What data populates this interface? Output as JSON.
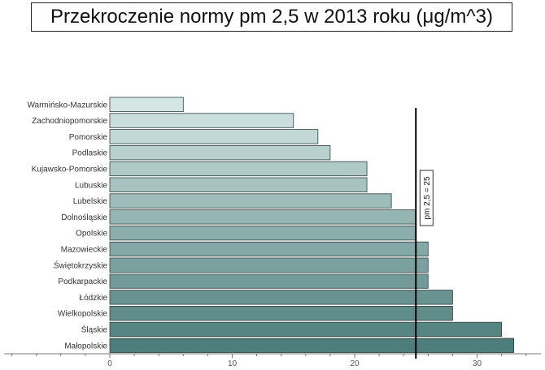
{
  "chart_data": {
    "type": "bar",
    "orientation": "horizontal",
    "title": "Przekroczenie normy pm 2,5 w 2013 roku (μg/m^3)",
    "categories": [
      "Warmińsko-Mazurskie",
      "Zachodniopomorskie",
      "Pomorskie",
      "Podlaskie",
      "Kujawsko-Pomorskie",
      "Lubuskie",
      "Lubelskie",
      "Dolnośląskie",
      "Opolskie",
      "Mazowieckie",
      "Świętokrzyskie",
      "Podkarpackie",
      "Łódzkie",
      "Wielkopolskie",
      "Śląskie",
      "Małopolskie"
    ],
    "values": [
      6,
      15,
      17,
      18,
      21,
      21,
      23,
      25,
      25,
      26,
      26,
      26,
      28,
      28,
      32,
      33
    ],
    "xlim": [
      -9,
      35
    ],
    "xticks": [
      "0",
      "10",
      "20",
      "30"
    ],
    "reference_line": {
      "value": 25,
      "label": "pm 2,5 = 25"
    },
    "grid": false,
    "colors": {
      "bar_light": "#d3e6e4",
      "bar_dark": "#4e7e7c",
      "bar_edge": "#2f3f3e"
    }
  }
}
